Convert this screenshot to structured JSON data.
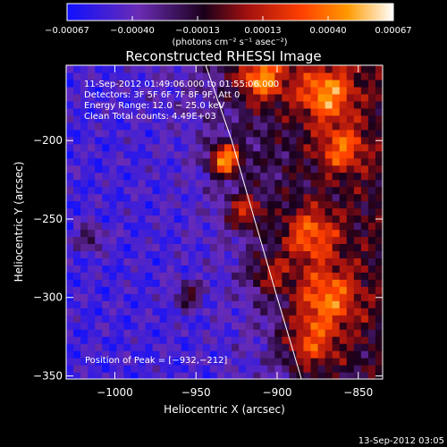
{
  "chart_data": {
    "type": "heatmap",
    "title": "Reconstructed RHESSI Image",
    "xlabel": "Heliocentric X (arcsec)",
    "ylabel": "Heliocentric Y (arcsec)",
    "xlim": [
      -1030,
      -835
    ],
    "ylim": [
      -352,
      -152
    ],
    "x_ticks": [
      -1000,
      -950,
      -900,
      -850
    ],
    "x_tick_labels": [
      "−1000",
      "−950",
      "−900",
      "−850"
    ],
    "y_ticks": [
      -200,
      -250,
      -300,
      -350
    ],
    "y_tick_labels": [
      "−200",
      "−250",
      "−300",
      "−350"
    ],
    "colorbar": {
      "min": -0.00067,
      "max": 0.00067,
      "tick_labels": [
        "−0.00067",
        "−0.00040",
        "−0.00013",
        "0.00013",
        "0.00040",
        "0.00067"
      ],
      "unit_label": "(photons cm⁻² s⁻¹ asec⁻²)",
      "colormap": [
        "#1010ff",
        "#6a2cb4",
        "#1a001a",
        "#a01010",
        "#ff4000",
        "#ff9a00",
        "#ffffff"
      ]
    },
    "annotations": [
      "11-Sep-2012 01:49:06.000 to 01:55:06.000",
      "Detectors: 3F 5F 6F 7F 8F 9F, Att 0",
      "Energy Range: 12.0 − 25.0 keV",
      "Clean    Total counts: 4.49E+03"
    ],
    "peak_label": "Position of Peak = [−932,−212]",
    "peak": {
      "x": -932,
      "y": -212
    },
    "limb_curve": [
      [
        -944,
        -152
      ],
      [
        -928,
        -200
      ],
      [
        -914,
        -250
      ],
      [
        -900,
        -300
      ],
      [
        -885,
        -352
      ]
    ],
    "bright_sources": [
      {
        "x": -932,
        "y": -212,
        "intensity": 1.0,
        "radius": 7
      },
      {
        "x": -910,
        "y": -160,
        "intensity": 0.75,
        "radius": 10
      },
      {
        "x": -870,
        "y": -170,
        "intensity": 0.7,
        "radius": 12
      },
      {
        "x": -860,
        "y": -205,
        "intensity": 0.55,
        "radius": 10
      },
      {
        "x": -880,
        "y": -260,
        "intensity": 0.6,
        "radius": 12
      },
      {
        "x": -870,
        "y": -300,
        "intensity": 0.65,
        "radius": 14
      },
      {
        "x": -880,
        "y": -330,
        "intensity": 0.55,
        "radius": 12
      },
      {
        "x": -920,
        "y": -245,
        "intensity": 0.6,
        "radius": 8
      },
      {
        "x": -905,
        "y": -285,
        "intensity": 0.45,
        "radius": 9
      },
      {
        "x": -955,
        "y": -298,
        "intensity": 0.5,
        "radius": 6
      },
      {
        "x": -1015,
        "y": -262,
        "intensity": 0.45,
        "radius": 6
      }
    ]
  },
  "footer": {
    "timestamp": "13-Sep-2012 03:05"
  }
}
